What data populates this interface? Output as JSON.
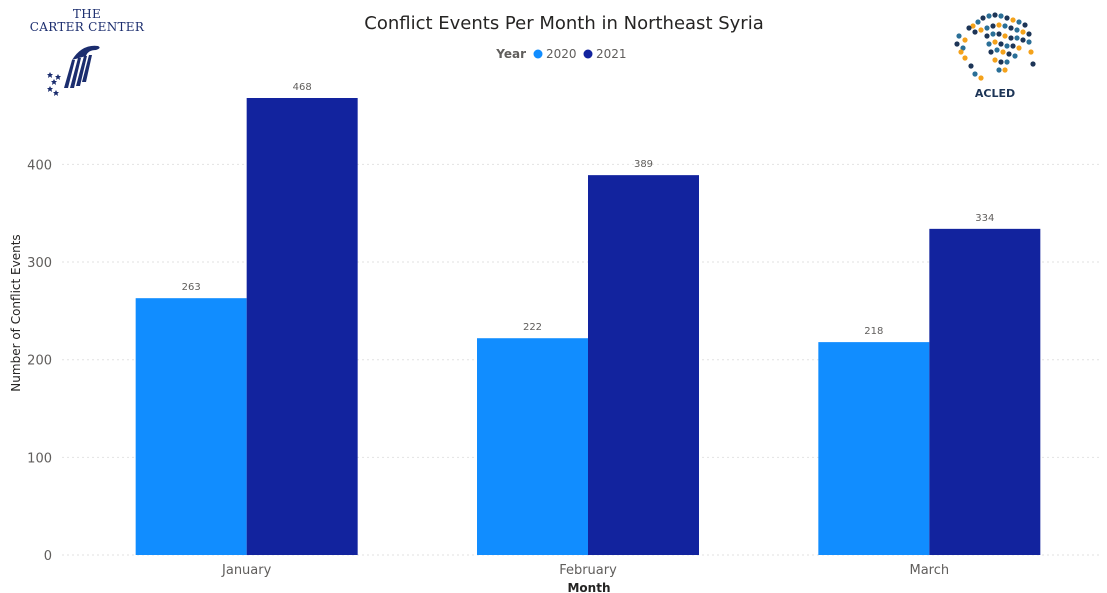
{
  "logos": {
    "carter_center": {
      "line1": "THE",
      "line2": "CARTER CENTER"
    },
    "acled": {
      "label": "ACLED"
    }
  },
  "colors": {
    "series_2020": "#118dff",
    "series_2021": "#12239e",
    "gridline": "#e2e2e2",
    "axis_text": "#605e5c",
    "title_text": "#252423"
  },
  "chart_data": {
    "type": "bar",
    "title": "Conflict Events Per Month in Northeast Syria",
    "legend_title": "Year",
    "legend_position": "top-center",
    "xlabel": "Month",
    "ylabel": "Number of Conflict Events",
    "categories": [
      "January",
      "February",
      "March"
    ],
    "series": [
      {
        "name": "2020",
        "color": "#118dff",
        "values": [
          263,
          222,
          218
        ]
      },
      {
        "name": "2021",
        "color": "#12239e",
        "values": [
          468,
          389,
          334
        ]
      }
    ],
    "y_ticks": [
      0,
      100,
      200,
      300,
      400
    ],
    "ylim": [
      0,
      468
    ],
    "grid": true,
    "data_labels": true
  }
}
